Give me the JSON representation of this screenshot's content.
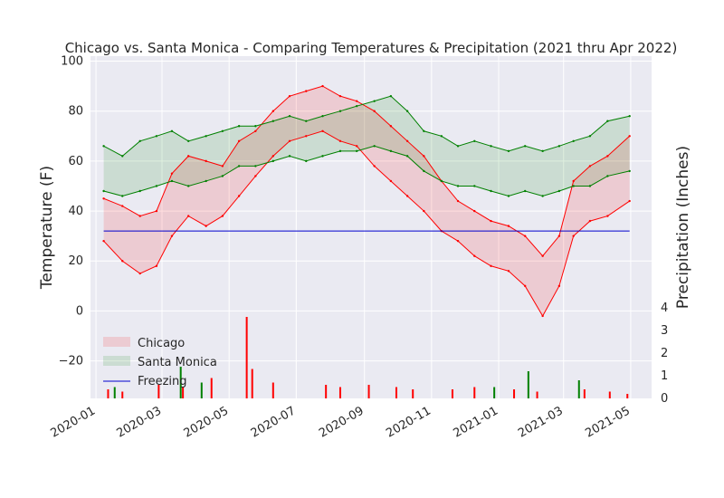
{
  "chart_data": {
    "type": "line",
    "title": "Chicago vs. Santa Monica - Comparing Temperatures & Precipitation (2021 thru Apr 2022)",
    "ylabel": "Temperature (F)",
    "y2label": "Precipitation (Inches)",
    "ylim": [
      -35,
      102
    ],
    "y2lim": [
      0,
      4
    ],
    "xlim": [
      "2019-12-27",
      "2021-05-20"
    ],
    "yticks": [
      -20,
      0,
      20,
      40,
      60,
      80,
      100
    ],
    "y2ticks": [
      0,
      1,
      2,
      3,
      4
    ],
    "x_ticks": [
      {
        "date": "2020-01-01",
        "label": "2020-01"
      },
      {
        "date": "2020-03-01",
        "label": "2020-03"
      },
      {
        "date": "2020-05-01",
        "label": "2020-05"
      },
      {
        "date": "2020-07-01",
        "label": "2020-07"
      },
      {
        "date": "2020-09-01",
        "label": "2020-09"
      },
      {
        "date": "2020-11-01",
        "label": "2020-11"
      },
      {
        "date": "2021-01-01",
        "label": "2021-01"
      },
      {
        "date": "2021-03-01",
        "label": "2021-03"
      },
      {
        "date": "2021-05-01",
        "label": "2021-05"
      }
    ],
    "grid": true,
    "legend_position": "lower-left",
    "freezing_line": 32,
    "legend": [
      {
        "label": "Chicago",
        "color": "#ff0000",
        "kind": "band"
      },
      {
        "label": "Santa Monica",
        "color": "#008000",
        "kind": "band"
      },
      {
        "label": "Freezing",
        "color": "#0000cd",
        "kind": "line"
      }
    ],
    "series": [
      {
        "name": "Chicago",
        "color": "#ff0000",
        "x": [
          "2020-01-08",
          "2020-01-25",
          "2020-02-10",
          "2020-02-25",
          "2020-03-10",
          "2020-03-25",
          "2020-04-10",
          "2020-04-25",
          "2020-05-10",
          "2020-05-25",
          "2020-06-10",
          "2020-06-25",
          "2020-07-10",
          "2020-07-25",
          "2020-08-10",
          "2020-08-25",
          "2020-09-10",
          "2020-09-25",
          "2020-10-10",
          "2020-10-25",
          "2020-11-10",
          "2020-11-25",
          "2020-12-10",
          "2020-12-25",
          "2021-01-10",
          "2021-01-25",
          "2021-02-10",
          "2021-02-25",
          "2021-03-10",
          "2021-03-25",
          "2021-04-10",
          "2021-04-30"
        ],
        "high": [
          45,
          42,
          38,
          40,
          55,
          62,
          60,
          58,
          68,
          72,
          80,
          86,
          88,
          90,
          86,
          84,
          80,
          74,
          68,
          62,
          52,
          44,
          40,
          36,
          34,
          30,
          22,
          30,
          52,
          58,
          62,
          70
        ],
        "low": [
          28,
          20,
          15,
          18,
          30,
          38,
          34,
          38,
          46,
          54,
          62,
          68,
          70,
          72,
          68,
          66,
          58,
          52,
          46,
          40,
          32,
          28,
          22,
          18,
          16,
          10,
          -2,
          10,
          30,
          36,
          38,
          44
        ]
      },
      {
        "name": "Santa Monica",
        "color": "#008000",
        "x": [
          "2020-01-08",
          "2020-01-25",
          "2020-02-10",
          "2020-02-25",
          "2020-03-10",
          "2020-03-25",
          "2020-04-10",
          "2020-04-25",
          "2020-05-10",
          "2020-05-25",
          "2020-06-10",
          "2020-06-25",
          "2020-07-10",
          "2020-07-25",
          "2020-08-10",
          "2020-08-25",
          "2020-09-10",
          "2020-09-25",
          "2020-10-10",
          "2020-10-25",
          "2020-11-10",
          "2020-11-25",
          "2020-12-10",
          "2020-12-25",
          "2021-01-10",
          "2021-01-25",
          "2021-02-10",
          "2021-02-25",
          "2021-03-10",
          "2021-03-25",
          "2021-04-10",
          "2021-04-30"
        ],
        "high": [
          66,
          62,
          68,
          70,
          72,
          68,
          70,
          72,
          74,
          74,
          76,
          78,
          76,
          78,
          80,
          82,
          84,
          86,
          80,
          72,
          70,
          66,
          68,
          66,
          64,
          66,
          64,
          66,
          68,
          70,
          76,
          78
        ],
        "low": [
          48,
          46,
          48,
          50,
          52,
          50,
          52,
          54,
          58,
          58,
          60,
          62,
          60,
          62,
          64,
          64,
          66,
          64,
          62,
          56,
          52,
          50,
          50,
          48,
          46,
          48,
          46,
          48,
          50,
          50,
          54,
          56
        ]
      }
    ],
    "precipitation": [
      {
        "name": "Chicago",
        "color": "#ff0000",
        "x": [
          "2020-01-12",
          "2020-01-25",
          "2020-02-27",
          "2020-03-20",
          "2020-04-15",
          "2020-05-17",
          "2020-05-22",
          "2020-06-10",
          "2020-07-28",
          "2020-08-10",
          "2020-09-05",
          "2020-09-30",
          "2020-10-15",
          "2020-11-20",
          "2020-12-10",
          "2021-01-15",
          "2021-02-05",
          "2021-03-20",
          "2021-04-12",
          "2021-04-28"
        ],
        "values": [
          0.4,
          0.3,
          0.6,
          0.5,
          0.9,
          3.6,
          1.3,
          0.7,
          0.6,
          0.5,
          0.6,
          0.5,
          0.4,
          0.4,
          0.5,
          0.4,
          0.3,
          0.4,
          0.3,
          0.2
        ]
      },
      {
        "name": "Santa Monica",
        "color": "#008000",
        "x": [
          "2020-01-18",
          "2020-03-18",
          "2020-04-06",
          "2020-12-28",
          "2021-01-28",
          "2021-03-15"
        ],
        "values": [
          0.5,
          1.4,
          0.7,
          0.5,
          1.2,
          0.8
        ]
      }
    ]
  }
}
